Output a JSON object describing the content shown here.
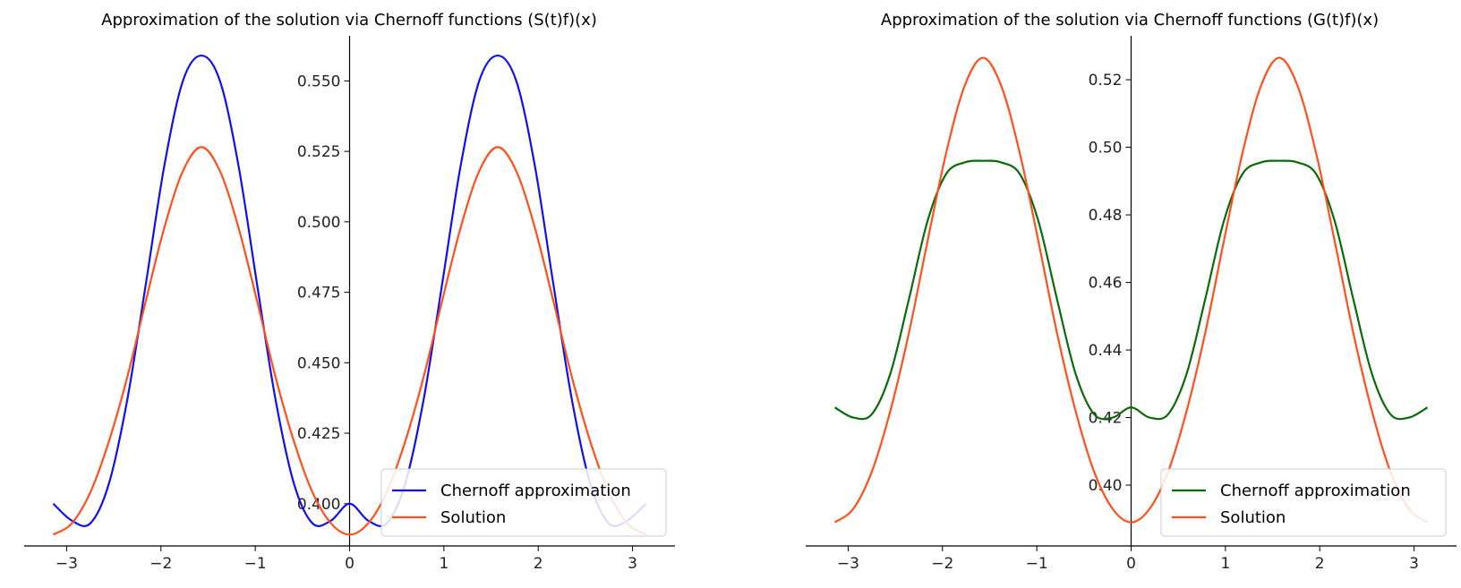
{
  "chart_data": [
    {
      "type": "line",
      "title": "Approximation of the solution via Chernoff functions (S(t)f)(x)",
      "xlabel": "",
      "ylabel": "",
      "xlim": [
        -3.45,
        3.45
      ],
      "ylim": [
        0.385,
        0.566
      ],
      "xticks": [
        -3,
        -2,
        -1,
        0,
        1,
        2,
        3
      ],
      "xtick_labels": [
        "−3",
        "−2",
        "−1",
        "0",
        "1",
        "2",
        "3"
      ],
      "yticks": [
        0.4,
        0.425,
        0.45,
        0.475,
        0.5,
        0.525,
        0.55
      ],
      "ytick_labels": [
        "0.400",
        "0.425",
        "0.450",
        "0.475",
        "0.500",
        "0.525",
        "0.550"
      ],
      "axes_style": "spines at zero (left spine at x=0, bottom spine below data)",
      "grid": false,
      "legend_position": "bottom-right",
      "series": [
        {
          "name": "Chernoff approximation",
          "color": "#1010ee",
          "x": [
            -3.1416,
            -2.9452,
            -2.7489,
            -2.5525,
            -2.3562,
            -2.1598,
            -1.9635,
            -1.7671,
            -1.5708,
            -1.3744,
            -1.1781,
            -0.9817,
            -0.7854,
            -0.589,
            -0.3927,
            -0.1963,
            0.0,
            0.1963,
            0.3927,
            0.589,
            0.7854,
            0.9817,
            1.1781,
            1.3744,
            1.5708,
            1.7671,
            1.9635,
            2.1598,
            2.3562,
            2.5525,
            2.7489,
            2.9452,
            3.1416
          ],
          "y": [
            0.4,
            0.394,
            0.393,
            0.407,
            0.437,
            0.478,
            0.52,
            0.55,
            0.559,
            0.55,
            0.52,
            0.478,
            0.437,
            0.407,
            0.393,
            0.394,
            0.4,
            0.394,
            0.393,
            0.407,
            0.437,
            0.478,
            0.52,
            0.55,
            0.559,
            0.55,
            0.52,
            0.478,
            0.437,
            0.407,
            0.393,
            0.394,
            0.4
          ]
        },
        {
          "name": "Solution",
          "color": "#ff4f1a",
          "x": [
            -3.1416,
            -2.9452,
            -2.7489,
            -2.5525,
            -2.3562,
            -2.1598,
            -1.9635,
            -1.7671,
            -1.5708,
            -1.3744,
            -1.1781,
            -0.9817,
            -0.7854,
            -0.589,
            -0.3927,
            -0.1963,
            0.0,
            0.1963,
            0.3927,
            0.589,
            0.7854,
            0.9817,
            1.1781,
            1.3744,
            1.5708,
            1.7671,
            1.9635,
            2.1598,
            2.3562,
            2.5525,
            2.7489,
            2.9452,
            3.1416
          ],
          "y": [
            0.389,
            0.393,
            0.404,
            0.422,
            0.445,
            0.472,
            0.498,
            0.518,
            0.5265,
            0.518,
            0.498,
            0.472,
            0.445,
            0.422,
            0.404,
            0.393,
            0.389,
            0.393,
            0.404,
            0.422,
            0.445,
            0.472,
            0.498,
            0.518,
            0.5265,
            0.518,
            0.498,
            0.472,
            0.445,
            0.422,
            0.404,
            0.393,
            0.389
          ]
        }
      ]
    },
    {
      "type": "line",
      "title": "Approximation of the solution via Chernoff functions (G(t)f)(x)",
      "xlabel": "",
      "ylabel": "",
      "xlim": [
        -3.45,
        3.45
      ],
      "ylim": [
        0.382,
        0.533
      ],
      "xticks": [
        -3,
        -2,
        -1,
        0,
        1,
        2,
        3
      ],
      "xtick_labels": [
        "−3",
        "−2",
        "−1",
        "0",
        "1",
        "2",
        "3"
      ],
      "yticks": [
        0.4,
        0.42,
        0.44,
        0.46,
        0.48,
        0.5,
        0.52
      ],
      "ytick_labels": [
        "0.40",
        "0.42",
        "0.44",
        "0.46",
        "0.48",
        "0.50",
        "0.52"
      ],
      "axes_style": "spines at zero (left spine at x=0, bottom spine below data)",
      "grid": false,
      "legend_position": "bottom-right",
      "series": [
        {
          "name": "Chernoff approximation",
          "color": "#0a6b0a",
          "x": [
            -3.1416,
            -2.9452,
            -2.7489,
            -2.5525,
            -2.3562,
            -2.1598,
            -1.9635,
            -1.7671,
            -1.5708,
            -1.3744,
            -1.1781,
            -0.9817,
            -0.7854,
            -0.589,
            -0.3927,
            -0.1963,
            0.0,
            0.1963,
            0.3927,
            0.589,
            0.7854,
            0.9817,
            1.1781,
            1.3744,
            1.5708,
            1.7671,
            1.9635,
            2.1598,
            2.3562,
            2.5525,
            2.7489,
            2.9452,
            3.1416
          ],
          "y": [
            0.423,
            0.42,
            0.421,
            0.433,
            0.455,
            0.478,
            0.492,
            0.4955,
            0.496,
            0.4955,
            0.492,
            0.478,
            0.455,
            0.433,
            0.421,
            0.42,
            0.423,
            0.42,
            0.421,
            0.433,
            0.455,
            0.478,
            0.492,
            0.4955,
            0.496,
            0.4955,
            0.492,
            0.478,
            0.455,
            0.433,
            0.421,
            0.42,
            0.423
          ]
        },
        {
          "name": "Solution",
          "color": "#ff4f1a",
          "x": [
            -3.1416,
            -2.9452,
            -2.7489,
            -2.5525,
            -2.3562,
            -2.1598,
            -1.9635,
            -1.7671,
            -1.5708,
            -1.3744,
            -1.1781,
            -0.9817,
            -0.7854,
            -0.589,
            -0.3927,
            -0.1963,
            0.0,
            0.1963,
            0.3927,
            0.589,
            0.7854,
            0.9817,
            1.1781,
            1.3744,
            1.5708,
            1.7671,
            1.9635,
            2.1598,
            2.3562,
            2.5525,
            2.7489,
            2.9452,
            3.1416
          ],
          "y": [
            0.389,
            0.393,
            0.404,
            0.422,
            0.445,
            0.472,
            0.498,
            0.518,
            0.5265,
            0.518,
            0.498,
            0.472,
            0.445,
            0.422,
            0.404,
            0.393,
            0.389,
            0.393,
            0.404,
            0.422,
            0.445,
            0.472,
            0.498,
            0.518,
            0.5265,
            0.518,
            0.498,
            0.472,
            0.445,
            0.422,
            0.404,
            0.393,
            0.389
          ]
        }
      ]
    }
  ]
}
